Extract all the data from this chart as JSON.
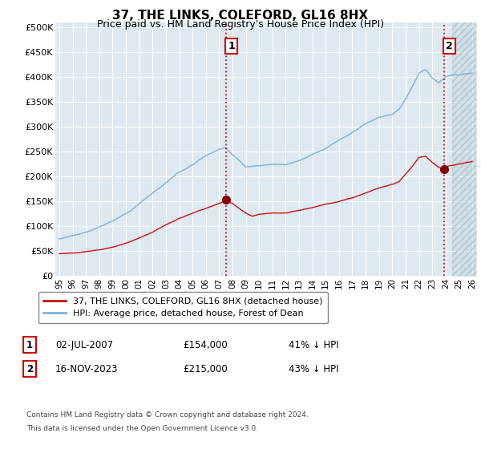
{
  "title": "37, THE LINKS, COLEFORD, GL16 8HX",
  "subtitle": "Price paid vs. HM Land Registry's House Price Index (HPI)",
  "ylabel_ticks": [
    "£0",
    "£50K",
    "£100K",
    "£150K",
    "£200K",
    "£250K",
    "£300K",
    "£350K",
    "£400K",
    "£450K",
    "£500K"
  ],
  "ytick_values": [
    0,
    50000,
    100000,
    150000,
    200000,
    250000,
    300000,
    350000,
    400000,
    450000,
    500000
  ],
  "ylim": [
    0,
    510000
  ],
  "xlim_start": 1994.7,
  "xlim_end": 2026.3,
  "xticks": [
    1995,
    1996,
    1997,
    1998,
    1999,
    2000,
    2001,
    2002,
    2003,
    2004,
    2005,
    2006,
    2007,
    2008,
    2009,
    2010,
    2011,
    2012,
    2013,
    2014,
    2015,
    2016,
    2017,
    2018,
    2019,
    2020,
    2021,
    2022,
    2023,
    2024,
    2025,
    2026
  ],
  "hpi_color": "#7ab4d8",
  "price_color": "#cc1111",
  "vline_color": "#cc1111",
  "bg_color": "#dde8f0",
  "grid_color": "#ffffff",
  "hatch_color": "#c5d5e0",
  "legend_label1": "37, THE LINKS, COLEFORD, GL16 8HX (detached house)",
  "legend_label2": "HPI: Average price, detached house, Forest of Dean",
  "transaction1_date": "02-JUL-2007",
  "transaction1_price": "£154,000",
  "transaction1_info": "41% ↓ HPI",
  "transaction1_year": 2007.5,
  "transaction1_price_val": 154000,
  "transaction2_date": "16-NOV-2023",
  "transaction2_price": "£215,000",
  "transaction2_info": "43% ↓ HPI",
  "transaction2_year": 2023.88,
  "transaction2_price_val": 215000,
  "footnote1": "Contains HM Land Registry data © Crown copyright and database right 2024.",
  "footnote2": "This data is licensed under the Open Government Licence v3.0."
}
